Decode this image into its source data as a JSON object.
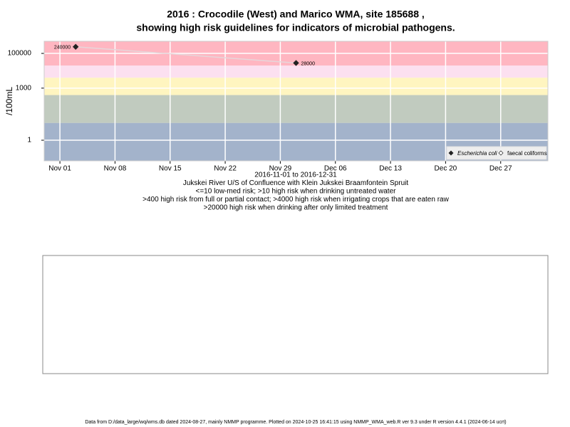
{
  "chart_data": {
    "type": "line",
    "title": [
      "2016 : Crocodile (West) and Marico WMA, site 185688 ,",
      "showing high risk guidelines for indicators of microbial pathogens."
    ],
    "y_label": "/100mL",
    "x": [
      "2016-11-03",
      "2016-12-01"
    ],
    "series": [
      {
        "name": "Escherichia coli",
        "color": "#222222",
        "marker_fill": "#222222",
        "values": [
          240000,
          28000
        ]
      },
      {
        "name": "faecal coliforms",
        "color": "#222222",
        "marker_fill": "#ffffff",
        "values": [
          null,
          null
        ]
      }
    ],
    "line_color": "#e6d6da",
    "log_y": true,
    "ylim": [
      0.065,
      500000
    ],
    "yticks": [
      1,
      1000,
      100000
    ],
    "xlim": [
      "2016-10-30",
      "2017-01-02"
    ],
    "xticks": [
      {
        "value": "2016-11-01",
        "label": "Nov 01"
      },
      {
        "value": "2016-11-08",
        "label": "Nov 08"
      },
      {
        "value": "2016-11-15",
        "label": "Nov 15"
      },
      {
        "value": "2016-11-22",
        "label": "Nov 22"
      },
      {
        "value": "2016-11-29",
        "label": "Nov 29"
      },
      {
        "value": "2016-12-06",
        "label": "Dec 06"
      },
      {
        "value": "2016-12-13",
        "label": "Dec 13"
      },
      {
        "value": "2016-12-20",
        "label": "Dec 20"
      },
      {
        "value": "2016-12-27",
        "label": "Dec 27"
      }
    ],
    "grid": true,
    "thresholds": [
      10,
      400,
      4000,
      20000
    ],
    "band_colors": [
      "#a3b3cb",
      "#c1cbbf",
      "#fff5c0",
      "#fce0f0",
      "#ffb6c1"
    ],
    "legend_position": "bottom-right",
    "caption": [
      "2016-11-01 to 2016-12-31",
      "Jukskei River U/S of Confluence with Klein Jukskei Braamfontein Spruit",
      "<=10 low-med risk; >10 high risk when drinking untreated water",
      ">400 high risk from full or partial contact; >4000 high risk when irrigating crops that are eaten raw",
      ">20000 high risk when drinking after only limited treatment"
    ],
    "footer": "Data from D:/data_large/wq/wms.db dated 2024-08-27, mainly NMMP programme. Plotted on 2024-10-25 16:41:15 using NMMP_WMA_web.R ver 9.3 under R version 4.4.1 (2024-06-14 ucrt)"
  }
}
